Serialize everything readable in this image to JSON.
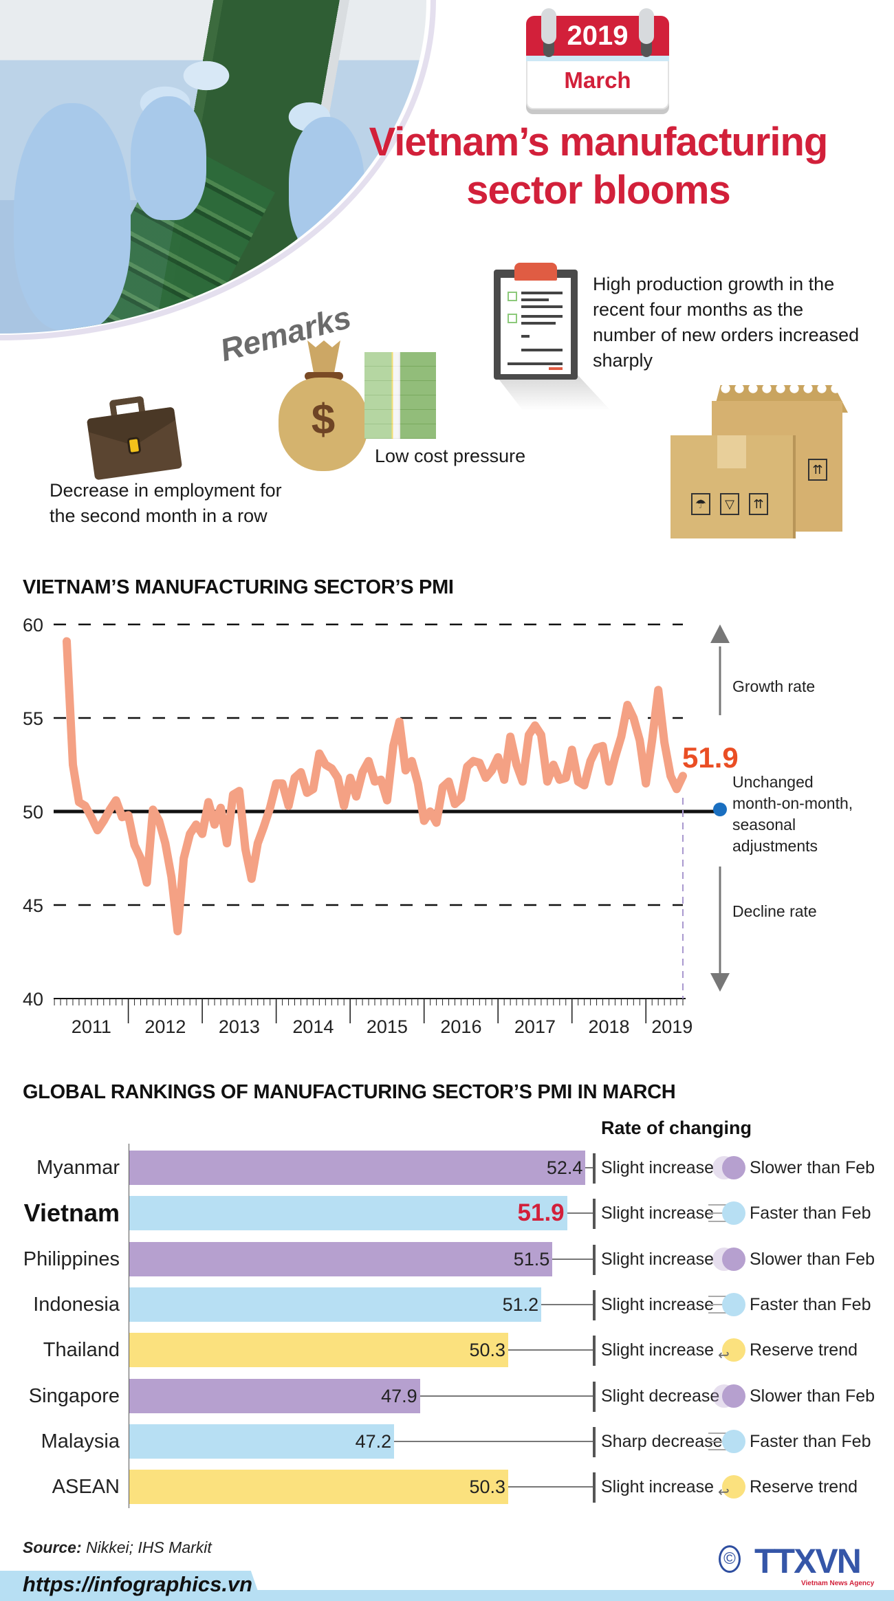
{
  "header": {
    "calendar_year": "2019",
    "calendar_month": "March",
    "title_line1": "Vietnam’s manufacturing",
    "title_line2": "sector blooms"
  },
  "remarks": {
    "label": "Remarks",
    "items": [
      {
        "icon": "clipboard-checklist-icon",
        "text": "High production growth in the recent four months as the number of new orders increased sharply"
      },
      {
        "icon": "money-bag-icon",
        "text": "Low cost pressure"
      },
      {
        "icon": "briefcase-icon",
        "text": "Decrease in employment for the second month in a row"
      },
      {
        "icon": "cardboard-boxes-icon",
        "text": ""
      }
    ]
  },
  "pmi_chart": {
    "title": "VIETNAM’S MANUFACTURING SECTOR’S PMI",
    "last_value_label": "51.9",
    "growth_label": "Growth rate",
    "unchanged_label_lines": [
      "Unchanged",
      "month-on-month,",
      "seasonal",
      "adjustments"
    ],
    "decline_label": "Decline rate"
  },
  "chart_data": [
    {
      "type": "line",
      "title": "VIETNAM’S MANUFACTURING SECTOR’S PMI",
      "xlabel": "",
      "ylabel": "",
      "ylim": [
        40,
        60
      ],
      "yticks": [
        40,
        45,
        50,
        55,
        60
      ],
      "reference_line": 50,
      "x_tick_labels": [
        "2011",
        "2012",
        "2013",
        "2014",
        "2015",
        "2016",
        "2017",
        "2018",
        "2019"
      ],
      "x_range": [
        "2011-03",
        "2019-03"
      ],
      "grid": "dashed horizontal at 45, 55, 60",
      "series": [
        {
          "name": "PMI (monthly)",
          "color": "#f4a184",
          "x_start": "2011-03",
          "values": [
            59.1,
            52.5,
            50.5,
            50.3,
            49.7,
            49.0,
            49.5,
            50.1,
            50.6,
            49.7,
            49.8,
            48.2,
            47.5,
            46.2,
            50.1,
            49.5,
            48.3,
            46.5,
            43.6,
            47.5,
            48.8,
            49.3,
            48.8,
            50.5,
            49.3,
            50.2,
            48.3,
            50.9,
            51.1,
            48.0,
            46.4,
            48.3,
            49.2,
            50.2,
            51.5,
            51.5,
            50.3,
            51.8,
            52.1,
            51.0,
            51.2,
            53.1,
            52.5,
            52.3,
            51.8,
            50.3,
            51.8,
            50.8,
            52.1,
            52.7,
            51.6,
            51.7,
            50.6,
            53.5,
            54.8,
            52.2,
            52.7,
            51.5,
            49.5,
            50.0,
            49.4,
            51.3,
            51.6,
            50.4,
            50.7,
            52.4,
            52.7,
            52.6,
            51.8,
            52.2,
            52.9,
            51.7,
            54.0,
            52.5,
            51.6,
            54.1,
            54.6,
            54.1,
            51.6,
            52.5,
            51.7,
            51.8,
            53.3,
            51.6,
            51.4,
            52.7,
            53.4,
            53.5,
            51.6,
            52.9,
            54.0,
            55.7,
            55.0,
            53.8,
            51.5,
            53.8,
            56.5,
            53.7,
            51.9,
            51.2,
            51.9
          ],
          "last_value": 51.9
        }
      ],
      "annotations": [
        "51.9",
        "Growth rate",
        "Unchanged month-on-month, seasonal adjustments",
        "Decline rate"
      ]
    },
    {
      "type": "bar",
      "orientation": "horizontal",
      "title": "GLOBAL RANKINGS OF MANUFACTURING SECTOR’S PMI IN MARCH",
      "categories": [
        "Myanmar",
        "Vietnam",
        "Philippines",
        "Indonesia",
        "Thailand",
        "Singapore",
        "Malaysia",
        "ASEAN"
      ],
      "values": [
        52.4,
        51.9,
        51.5,
        51.2,
        50.3,
        47.9,
        47.2,
        50.3
      ],
      "rate_of_changing": [
        "Slight increase",
        "Slight increase",
        "Slight increase",
        "Slight increase",
        "Slight increase",
        "Slight decrease",
        "Sharp decrease",
        "Slight increase"
      ],
      "trend": [
        "Slower than Feb",
        "Faster than Feb",
        "Slower than Feb",
        "Faster than Feb",
        "Reserve trend",
        "Slower than Feb",
        "Faster than Feb",
        "Reserve trend"
      ],
      "legend": {
        "#b6a0cf": "Slower than Feb",
        "#b7dff3": "Faster than Feb",
        "#fbe17e": "Reserve trend"
      }
    }
  ],
  "rankings": {
    "title": "GLOBAL RANKINGS OF MANUFACTURING SECTOR’S PMI IN MARCH",
    "rate_header": "Rate of changing",
    "rows": [
      {
        "country": "Myanmar",
        "value": "52.4",
        "change": "Slight increase",
        "trend": "Slower than Feb",
        "kind": "slower",
        "highlight": false
      },
      {
        "country": "Vietnam",
        "value": "51.9",
        "change": "Slight increase",
        "trend": "Faster than Feb",
        "kind": "faster",
        "highlight": true
      },
      {
        "country": "Philippines",
        "value": "51.5",
        "change": "Slight increase",
        "trend": "Slower than Feb",
        "kind": "slower",
        "highlight": false
      },
      {
        "country": "Indonesia",
        "value": "51.2",
        "change": "Slight increase",
        "trend": "Faster than Feb",
        "kind": "faster",
        "highlight": false
      },
      {
        "country": "Thailand",
        "value": "50.3",
        "change": "Slight increase",
        "trend": "Reserve trend",
        "kind": "reverse",
        "highlight": false
      },
      {
        "country": "Singapore",
        "value": "47.9",
        "change": "Slight decrease",
        "trend": "Slower than Feb",
        "kind": "slower",
        "highlight": false
      },
      {
        "country": "Malaysia",
        "value": "47.2",
        "change": "Sharp decrease",
        "trend": "Faster than Feb",
        "kind": "faster",
        "highlight": false
      },
      {
        "country": "ASEAN",
        "value": "50.3",
        "change": "Slight increase",
        "trend": "Reserve trend",
        "kind": "reverse",
        "highlight": false
      }
    ]
  },
  "colors": {
    "brand_red": "#d2203a",
    "line_salmon": "#f4a184",
    "last_value_orange": "#ea4e24",
    "slower_purple": "#b6a0cf",
    "faster_blue": "#b7dff3",
    "reverse_yellow": "#fbe17e",
    "unchanged_dot_blue": "#1a6fc0"
  },
  "footer": {
    "source_label": "Source:",
    "source_text": " Nikkei; IHS Markit",
    "url": "https://infographics.vn",
    "logo_text": "TTXVN",
    "logo_sub": "Vietnam News Agency",
    "copyright_symbol": "©"
  }
}
